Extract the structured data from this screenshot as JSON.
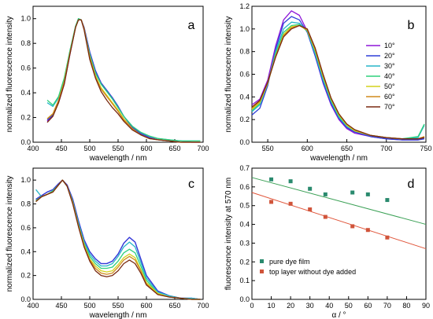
{
  "colors": {
    "angles": {
      "10°": "#8e16d8",
      "20°": "#2e3fd9",
      "30°": "#27b6c8",
      "40°": "#2fd07c",
      "50°": "#d4d21c",
      "60°": "#d08a1c",
      "70°": "#7a2a10"
    },
    "pure_dye_film": "#2a8a6e",
    "top_layer": "#d0543a",
    "pure_dye_fit": "#3aa055",
    "top_layer_fit": "#e0553a"
  },
  "chart_data": [
    {
      "panel": "a",
      "type": "line",
      "xlabel": "wavelength / nm",
      "ylabel": "normalized fluorescence intensity",
      "xlim": [
        400,
        700
      ],
      "ylim": [
        0,
        1.1
      ],
      "xticks": [
        "400",
        "450",
        "500",
        "550",
        "600",
        "650",
        "700"
      ],
      "yticks": [
        "0.0",
        "0.2",
        "0.4",
        "0.6",
        "0.8",
        "1.0"
      ],
      "x": [
        425,
        435,
        445,
        455,
        465,
        475,
        480,
        485,
        490,
        495,
        500,
        510,
        520,
        530,
        540,
        550,
        560,
        575,
        590,
        605,
        620,
        640,
        660,
        680,
        695
      ],
      "series": [
        {
          "name": "10°",
          "values": [
            0.17,
            0.22,
            0.32,
            0.47,
            0.71,
            0.93,
            0.99,
            0.99,
            0.93,
            0.83,
            0.73,
            0.58,
            0.48,
            0.42,
            0.36,
            0.29,
            0.21,
            0.12,
            0.07,
            0.04,
            0.02,
            0.01,
            0.01,
            0.0,
            0.0
          ]
        },
        {
          "name": "20°",
          "values": [
            0.18,
            0.22,
            0.33,
            0.48,
            0.72,
            0.93,
            0.99,
            0.99,
            0.93,
            0.83,
            0.73,
            0.58,
            0.48,
            0.42,
            0.36,
            0.29,
            0.21,
            0.12,
            0.07,
            0.04,
            0.02,
            0.01,
            0.01,
            0.0,
            0.0
          ]
        },
        {
          "name": "30°",
          "values": [
            0.32,
            0.29,
            0.36,
            0.51,
            0.74,
            0.94,
            1.0,
            0.99,
            0.92,
            0.81,
            0.71,
            0.56,
            0.47,
            0.41,
            0.35,
            0.28,
            0.21,
            0.13,
            0.08,
            0.05,
            0.03,
            0.02,
            0.01,
            0.01,
            0.01
          ]
        },
        {
          "name": "40°",
          "values": [
            0.34,
            0.3,
            0.37,
            0.52,
            0.74,
            0.94,
            1.0,
            0.99,
            0.92,
            0.81,
            0.71,
            0.56,
            0.47,
            0.41,
            0.35,
            0.28,
            0.21,
            0.13,
            0.08,
            0.05,
            0.03,
            0.02,
            0.01,
            0.01,
            0.01
          ]
        },
        {
          "name": "50°",
          "values": [
            0.19,
            0.23,
            0.34,
            0.49,
            0.72,
            0.93,
            0.99,
            0.99,
            0.92,
            0.8,
            0.69,
            0.54,
            0.44,
            0.38,
            0.32,
            0.26,
            0.19,
            0.11,
            0.06,
            0.03,
            0.02,
            0.01,
            0.0,
            0.0,
            0.0
          ]
        },
        {
          "name": "60°",
          "values": [
            0.19,
            0.23,
            0.34,
            0.49,
            0.72,
            0.93,
            0.99,
            0.99,
            0.92,
            0.8,
            0.69,
            0.53,
            0.43,
            0.37,
            0.31,
            0.25,
            0.18,
            0.11,
            0.06,
            0.03,
            0.02,
            0.01,
            0.0,
            0.0,
            0.0
          ]
        },
        {
          "name": "70°",
          "values": [
            0.16,
            0.21,
            0.32,
            0.47,
            0.71,
            0.93,
            0.99,
            0.99,
            0.91,
            0.79,
            0.67,
            0.52,
            0.41,
            0.34,
            0.28,
            0.23,
            0.17,
            0.1,
            0.06,
            0.03,
            0.02,
            0.01,
            0.0,
            0.0,
            0.0
          ]
        }
      ]
    },
    {
      "panel": "b",
      "type": "line",
      "xlabel": "wavelength / nm",
      "ylabel": "normalized fluorescence intensity",
      "xlim": [
        530,
        750
      ],
      "ylim": [
        0,
        1.2
      ],
      "xticks": [
        "550",
        "600",
        "650",
        "700",
        "750"
      ],
      "yticks": [
        "0.0",
        "0.2",
        "0.4",
        "0.6",
        "0.8",
        "1.0",
        "1.2"
      ],
      "legend": {
        "position": "right",
        "entries": [
          "10°",
          "20°",
          "30°",
          "40°",
          "50°",
          "60°",
          "70°"
        ]
      },
      "x": [
        530,
        540,
        550,
        560,
        570,
        580,
        590,
        600,
        610,
        620,
        630,
        640,
        650,
        660,
        680,
        700,
        720,
        740,
        748
      ],
      "series": [
        {
          "name": "10°",
          "values": [
            0.33,
            0.38,
            0.55,
            0.85,
            1.08,
            1.16,
            1.12,
            0.98,
            0.76,
            0.52,
            0.33,
            0.2,
            0.12,
            0.08,
            0.05,
            0.03,
            0.02,
            0.02,
            0.04
          ]
        },
        {
          "name": "20°",
          "values": [
            0.24,
            0.3,
            0.5,
            0.82,
            1.05,
            1.11,
            1.08,
            0.97,
            0.76,
            0.53,
            0.34,
            0.21,
            0.13,
            0.09,
            0.05,
            0.03,
            0.02,
            0.02,
            0.03
          ]
        },
        {
          "name": "30°",
          "values": [
            0.27,
            0.33,
            0.52,
            0.8,
            1.0,
            1.06,
            1.05,
            0.98,
            0.78,
            0.55,
            0.36,
            0.22,
            0.14,
            0.1,
            0.06,
            0.04,
            0.03,
            0.04,
            0.15
          ]
        },
        {
          "name": "40°",
          "values": [
            0.28,
            0.34,
            0.52,
            0.78,
            0.97,
            1.03,
            1.04,
            0.98,
            0.8,
            0.57,
            0.37,
            0.23,
            0.15,
            0.1,
            0.06,
            0.04,
            0.03,
            0.05,
            0.16
          ]
        },
        {
          "name": "50°",
          "values": [
            0.29,
            0.35,
            0.52,
            0.76,
            0.95,
            1.02,
            1.03,
            0.99,
            0.81,
            0.58,
            0.38,
            0.24,
            0.15,
            0.1,
            0.06,
            0.04,
            0.03,
            0.03,
            0.05
          ]
        },
        {
          "name": "60°",
          "values": [
            0.3,
            0.36,
            0.53,
            0.76,
            0.94,
            1.01,
            1.03,
            0.99,
            0.82,
            0.59,
            0.39,
            0.25,
            0.16,
            0.11,
            0.06,
            0.04,
            0.03,
            0.03,
            0.05
          ]
        },
        {
          "name": "70°",
          "values": [
            0.31,
            0.37,
            0.53,
            0.75,
            0.93,
            1.0,
            1.03,
            1.0,
            0.83,
            0.6,
            0.39,
            0.25,
            0.16,
            0.11,
            0.06,
            0.04,
            0.03,
            0.03,
            0.04
          ]
        }
      ]
    },
    {
      "panel": "c",
      "type": "line",
      "xlabel": "wavelength / nm",
      "ylabel": "normalized fluorescence intensity",
      "xlim": [
        400,
        700
      ],
      "ylim": [
        0,
        1.1
      ],
      "xticks": [
        "400",
        "450",
        "500",
        "550",
        "600",
        "650",
        "700"
      ],
      "yticks": [
        "0.0",
        "0.2",
        "0.4",
        "0.6",
        "0.8",
        "1.0"
      ],
      "x": [
        405,
        415,
        425,
        435,
        445,
        452,
        460,
        470,
        480,
        490,
        500,
        510,
        520,
        530,
        540,
        550,
        560,
        570,
        580,
        590,
        600,
        620,
        640,
        660,
        680,
        695
      ],
      "series": [
        {
          "name": "10°",
          "values": [
            0.84,
            0.87,
            0.9,
            0.92,
            0.97,
            1.0,
            0.96,
            0.84,
            0.66,
            0.5,
            0.4,
            0.34,
            0.3,
            0.3,
            0.32,
            0.38,
            0.47,
            0.52,
            0.48,
            0.34,
            0.2,
            0.07,
            0.03,
            0.01,
            0.01,
            0.0
          ]
        },
        {
          "name": "20°",
          "values": [
            0.84,
            0.87,
            0.9,
            0.92,
            0.97,
            1.0,
            0.96,
            0.84,
            0.66,
            0.5,
            0.4,
            0.34,
            0.3,
            0.3,
            0.32,
            0.38,
            0.47,
            0.52,
            0.48,
            0.34,
            0.2,
            0.07,
            0.03,
            0.01,
            0.01,
            0.0
          ]
        },
        {
          "name": "30°",
          "values": [
            0.92,
            0.86,
            0.88,
            0.91,
            0.96,
            1.0,
            0.95,
            0.82,
            0.64,
            0.48,
            0.38,
            0.32,
            0.28,
            0.28,
            0.3,
            0.36,
            0.44,
            0.48,
            0.44,
            0.31,
            0.18,
            0.06,
            0.03,
            0.01,
            0.01,
            0.0
          ]
        },
        {
          "name": "40°",
          "values": [
            0.83,
            0.86,
            0.88,
            0.91,
            0.96,
            1.0,
            0.95,
            0.82,
            0.63,
            0.47,
            0.36,
            0.3,
            0.26,
            0.26,
            0.27,
            0.32,
            0.39,
            0.42,
            0.39,
            0.28,
            0.16,
            0.05,
            0.02,
            0.01,
            0.0,
            0.0
          ]
        },
        {
          "name": "50°",
          "values": [
            0.82,
            0.86,
            0.88,
            0.9,
            0.96,
            1.0,
            0.95,
            0.81,
            0.62,
            0.46,
            0.34,
            0.28,
            0.24,
            0.23,
            0.24,
            0.29,
            0.35,
            0.38,
            0.35,
            0.25,
            0.14,
            0.05,
            0.02,
            0.01,
            0.0,
            0.0
          ]
        },
        {
          "name": "60°",
          "values": [
            0.82,
            0.86,
            0.88,
            0.9,
            0.96,
            1.0,
            0.95,
            0.81,
            0.62,
            0.45,
            0.33,
            0.26,
            0.22,
            0.21,
            0.22,
            0.27,
            0.33,
            0.36,
            0.33,
            0.24,
            0.13,
            0.04,
            0.02,
            0.01,
            0.0,
            0.0
          ]
        },
        {
          "name": "70°",
          "values": [
            0.82,
            0.86,
            0.88,
            0.9,
            0.96,
            1.0,
            0.95,
            0.8,
            0.61,
            0.44,
            0.32,
            0.24,
            0.2,
            0.19,
            0.2,
            0.24,
            0.3,
            0.33,
            0.3,
            0.22,
            0.12,
            0.04,
            0.02,
            0.01,
            0.0,
            0.0
          ]
        }
      ]
    },
    {
      "panel": "d",
      "type": "scatter",
      "xlabel": "α / °",
      "ylabel": "fluorescence intensity at 570 nm",
      "xlim": [
        0,
        90
      ],
      "ylim": [
        0.0,
        0.7
      ],
      "xticks": [
        "0",
        "10",
        "20",
        "30",
        "40",
        "50",
        "60",
        "70",
        "80",
        "90"
      ],
      "yticks": [
        "0.0",
        "0.1",
        "0.2",
        "0.3",
        "0.4",
        "0.5",
        "0.6",
        "0.7"
      ],
      "legend": {
        "position": "bottom-left",
        "entries": [
          "pure dye film",
          "top layer without dye added"
        ]
      },
      "series": [
        {
          "name": "pure dye film",
          "x": [
            10,
            20,
            30,
            38,
            52,
            60,
            70
          ],
          "values": [
            0.64,
            0.63,
            0.59,
            0.56,
            0.57,
            0.56,
            0.53
          ],
          "fit": [
            0.65,
            0.4
          ]
        },
        {
          "name": "top layer without dye added",
          "x": [
            10,
            20,
            30,
            38,
            52,
            60,
            70
          ],
          "values": [
            0.52,
            0.51,
            0.48,
            0.44,
            0.39,
            0.37,
            0.33
          ],
          "fit": [
            0.57,
            0.27
          ]
        }
      ]
    }
  ]
}
